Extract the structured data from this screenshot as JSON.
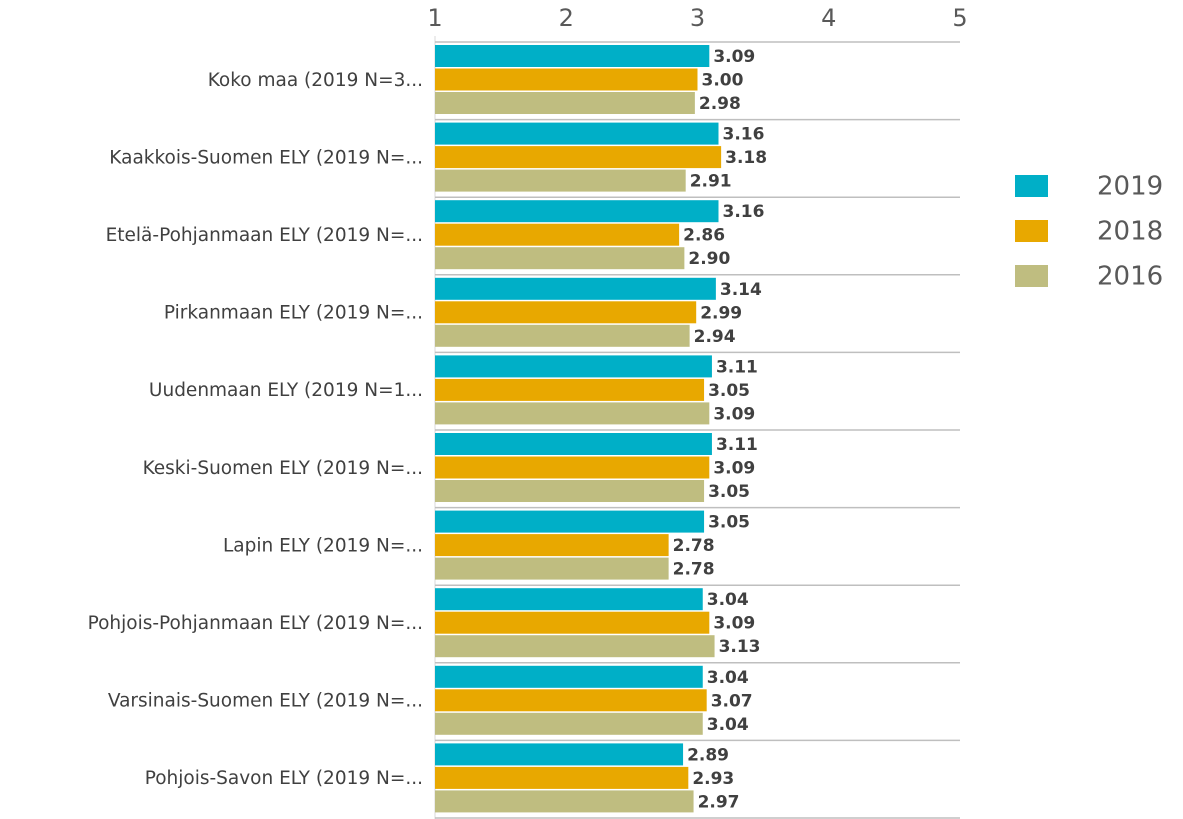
{
  "chart_data": {
    "type": "bar",
    "orientation": "horizontal",
    "categories": [
      "Koko maa (2019 N=3...",
      "Kaakkois-Suomen ELY (2019 N=...",
      "Etelä-Pohjanmaan ELY (2019 N=...",
      "Pirkanmaan ELY (2019 N=...",
      "Uudenmaan ELY (2019 N=1...",
      "Keski-Suomen ELY (2019 N=...",
      "Lapin ELY (2019 N=...",
      "Pohjois-Pohjanmaan ELY (2019 N=...",
      "Varsinais-Suomen ELY (2019 N=...",
      "Pohjois-Savon ELY (2019 N=..."
    ],
    "series": [
      {
        "name": "2019",
        "color": "#00afc7",
        "values": [
          3.09,
          3.16,
          3.16,
          3.14,
          3.11,
          3.11,
          3.05,
          3.04,
          3.04,
          2.89
        ],
        "value_labels": [
          "3.09",
          "3.16",
          "3.16",
          "3.14",
          "3.11",
          "3.11",
          "3.05",
          "3.04",
          "3.04",
          "2.89"
        ]
      },
      {
        "name": "2018",
        "color": "#e8a800",
        "values": [
          3,
          3.18,
          2.86,
          2.99,
          3.05,
          3.09,
          2.78,
          3.09,
          3.07,
          2.93
        ],
        "value_labels": [
          "3.00",
          "3.18",
          "2.86",
          "2.99",
          "3.05",
          "3.09",
          "2.78",
          "3.09",
          "3.07",
          "2.93"
        ]
      },
      {
        "name": "2016",
        "color": "#bfbd80",
        "values": [
          2.98,
          2.91,
          2.9,
          2.94,
          3.09,
          3.05,
          2.78,
          3.13,
          3.04,
          2.97
        ],
        "value_labels": [
          "2.98",
          "2.91",
          "2.90",
          "2.94",
          "3.09",
          "3.05",
          "2.78",
          "3.13",
          "3.04",
          "2.97"
        ]
      }
    ],
    "xlim": [
      1,
      5
    ],
    "xticks": [
      1,
      2,
      3,
      4,
      5
    ],
    "legend": "right"
  }
}
